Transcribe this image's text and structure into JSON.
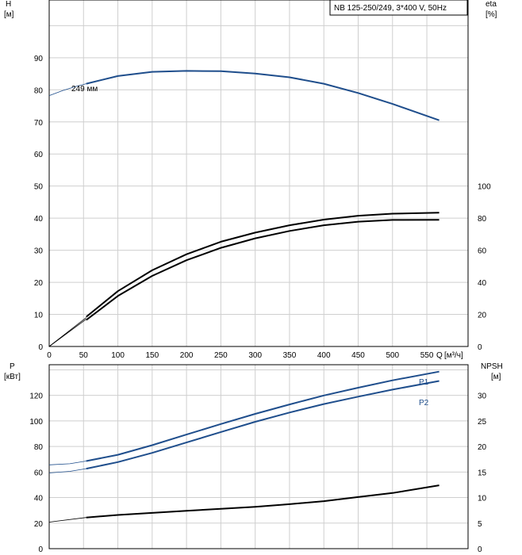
{
  "chart_data": [
    {
      "type": "line",
      "panel": "head-efficiency",
      "model_label": "NB 125-250/249, 3*400 V, 50Hz",
      "impeller_label": "249 мм",
      "x_label": "Q",
      "x_unit": "[м³/ч]",
      "x_ticks": [
        "0",
        "50",
        "100",
        "150",
        "200",
        "250",
        "300",
        "350",
        "400",
        "450",
        "500",
        "550"
      ],
      "xlim": [
        0,
        610
      ],
      "y_left_label": "H",
      "y_left_unit": "[м]",
      "y_left_ticks": [
        "0",
        "10",
        "20",
        "30",
        "40",
        "50",
        "60",
        "70",
        "80",
        "90"
      ],
      "ylim_left": [
        0,
        108
      ],
      "y_right_label": "eta",
      "y_right_unit": "[%]",
      "y_right_ticks": [
        "0",
        "20",
        "40",
        "60",
        "80",
        "100"
      ],
      "ylim_right": [
        0,
        216
      ],
      "grid": true,
      "series": [
        {
          "axis": "left",
          "color": "#1f4e8c",
          "lead_in": {
            "x": [
              0,
              20,
              40,
              54
            ],
            "y": [
              78.2,
              79.8,
              81.1,
              81.9
            ]
          },
          "x": [
            54,
            100,
            150,
            200,
            250,
            300,
            350,
            400,
            450,
            500,
            568
          ],
          "y": [
            81.9,
            84.3,
            85.6,
            85.9,
            85.8,
            85.1,
            83.9,
            81.9,
            79.0,
            75.6,
            70.5
          ]
        },
        {
          "axis": "right",
          "color": "#000000",
          "lead_in": {
            "x": [
              0,
              54
            ],
            "y": [
              0,
              18
            ]
          },
          "x": [
            54,
            100,
            150,
            200,
            250,
            300,
            350,
            400,
            450,
            500,
            568
          ],
          "y": [
            18.5,
            34.5,
            47.5,
            57.5,
            65.3,
            71.0,
            75.6,
            79.1,
            81.5,
            82.8,
            83.4
          ]
        },
        {
          "axis": "right",
          "color": "#000000",
          "lead_in": {
            "x": [
              0,
              54
            ],
            "y": [
              0,
              17
            ]
          },
          "x": [
            54,
            100,
            150,
            200,
            250,
            300,
            350,
            400,
            450,
            500,
            568
          ],
          "y": [
            16.5,
            31.5,
            44.0,
            53.8,
            61.5,
            67.4,
            72.0,
            75.6,
            77.8,
            78.9,
            79.0
          ]
        }
      ]
    },
    {
      "type": "line",
      "panel": "power-npsh",
      "y_left_label": "P",
      "y_left_unit": "[кВт]",
      "y_left_ticks": [
        "0",
        "20",
        "40",
        "60",
        "80",
        "100",
        "120"
      ],
      "ylim_left": [
        0,
        144
      ],
      "y_right_label": "NPSH",
      "y_right_unit": "[м]",
      "y_right_ticks": [
        "0",
        "5",
        "10",
        "15",
        "20",
        "25",
        "30"
      ],
      "ylim_right": [
        0,
        36
      ],
      "xlim": [
        0,
        610
      ],
      "grid": true,
      "series": [
        {
          "name": "P1",
          "axis": "left",
          "color": "#1f4e8c",
          "lead_in": {
            "x": [
              0,
              30,
              54
            ],
            "y": [
              65.6,
              66.5,
              68.6
            ]
          },
          "x": [
            54,
            100,
            150,
            200,
            250,
            300,
            350,
            400,
            450,
            500,
            568
          ],
          "y": [
            68.6,
            73.5,
            81.0,
            89.3,
            97.6,
            105.5,
            112.9,
            119.9,
            126.0,
            131.8,
            138.6
          ]
        },
        {
          "name": "P2",
          "axis": "left",
          "color": "#1f4e8c",
          "lead_in": {
            "x": [
              0,
              30,
              54
            ],
            "y": [
              59.3,
              60.5,
              62.6
            ]
          },
          "x": [
            54,
            100,
            150,
            200,
            250,
            300,
            350,
            400,
            450,
            500,
            568
          ],
          "y": [
            62.6,
            67.8,
            75.0,
            83.1,
            91.3,
            99.3,
            106.6,
            113.2,
            119.0,
            124.5,
            131.3
          ]
        },
        {
          "axis": "right",
          "color": "#000000",
          "lead_in": {
            "x": [
              0,
              54
            ],
            "y": [
              5.2,
              6.1
            ]
          },
          "x": [
            54,
            100,
            150,
            200,
            250,
            300,
            350,
            400,
            450,
            500,
            568
          ],
          "y": [
            6.1,
            6.6,
            7.0,
            7.4,
            7.8,
            8.2,
            8.7,
            9.3,
            10.1,
            10.9,
            12.4
          ]
        }
      ]
    }
  ]
}
